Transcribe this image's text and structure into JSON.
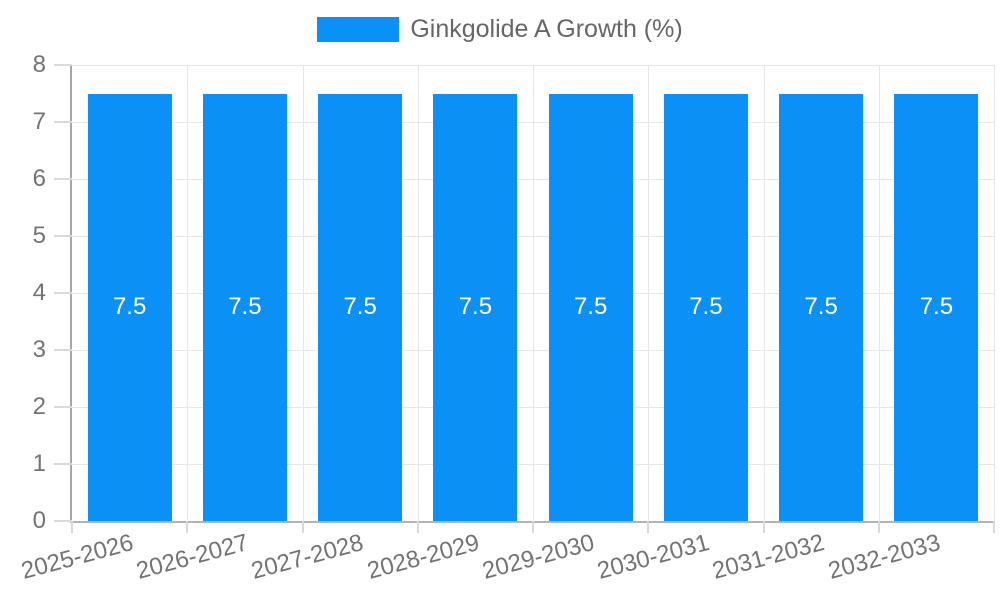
{
  "legend": {
    "label": "Ginkgolide A Growth (%)"
  },
  "chart_data": {
    "type": "bar",
    "title": "",
    "categories": [
      "2025-2026",
      "2026-2027",
      "2027-2028",
      "2028-2029",
      "2029-2030",
      "2030-2031",
      "2031-2032",
      "2032-2033"
    ],
    "series": [
      {
        "name": "Ginkgolide A Growth (%)",
        "color": "#0b90f5",
        "values": [
          7.5,
          7.5,
          7.5,
          7.5,
          7.5,
          7.5,
          7.5,
          7.5
        ]
      }
    ],
    "value_labels": [
      "7.5",
      "7.5",
      "7.5",
      "7.5",
      "7.5",
      "7.5",
      "7.5",
      "7.5"
    ],
    "xlabel": "",
    "ylabel": "",
    "ylim": [
      0,
      8
    ],
    "yticks": [
      0,
      1,
      2,
      3,
      4,
      5,
      6,
      7,
      8
    ],
    "grid": true,
    "legend_position": "top",
    "x_label_rotation_deg": -15
  },
  "colors": {
    "bar": "#0b90f5",
    "grid": "#e6e6e6",
    "axis_y": "#a6a6a6",
    "axis_x": "#b3b3b3",
    "tick": "#d9d9d9",
    "tick_text": "#737373",
    "legend_text": "#666666",
    "bar_label": "#ffffff",
    "background": "#ffffff"
  }
}
